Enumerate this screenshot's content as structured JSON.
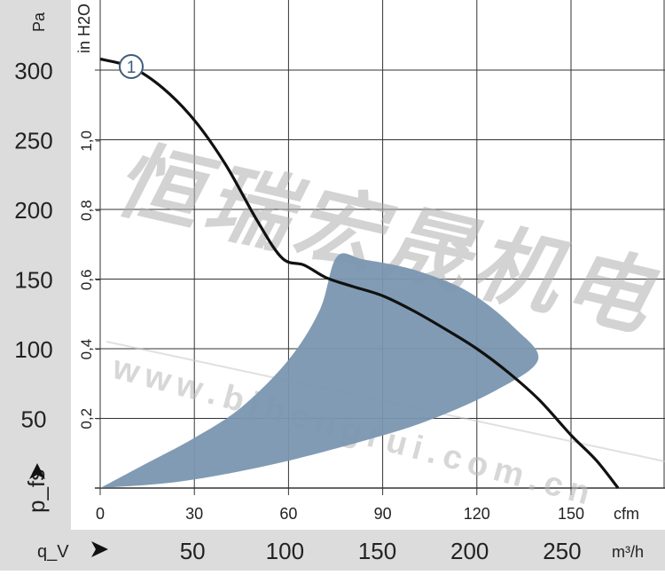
{
  "chart_data": {
    "type": "area",
    "title": "",
    "y_unit_left": "Pa",
    "y_unit_secondary": "in H2O",
    "y_label": "p_fs",
    "x_label": "q_V",
    "x_unit_top": "cfm",
    "x_unit_bottom": "m³/h",
    "xlim_cfm": [
      0,
      165
    ],
    "ylim_pa": [
      0,
      350
    ],
    "grid": true,
    "pa_ticks": [
      "300",
      "250",
      "200",
      "150",
      "100",
      "50"
    ],
    "pa_tick_values": [
      300,
      250,
      200,
      150,
      100,
      50
    ],
    "inh2o_ticks": [
      "1,0",
      "0,8",
      "0,6",
      "0,4",
      "0,2"
    ],
    "inh2o_tick_values": [
      1.0,
      0.8,
      0.6,
      0.4,
      0.2
    ],
    "cfm_ticks": [
      "0",
      "30",
      "60",
      "90",
      "120",
      "150"
    ],
    "cfm_tick_values": [
      0,
      30,
      60,
      90,
      120,
      150
    ],
    "m3h_ticks": [
      "50",
      "100",
      "150",
      "200",
      "250"
    ],
    "m3h_tick_values": [
      50,
      100,
      150,
      200,
      250
    ],
    "series": [
      {
        "name": "1",
        "color": "#111111",
        "x_cfm": [
          0,
          10,
          20,
          30,
          40,
          50,
          58,
          65,
          72,
          80,
          90,
          100,
          110,
          120,
          130,
          140,
          150,
          158,
          165
        ],
        "y_pa": [
          308,
          302,
          287,
          264,
          232,
          192,
          165,
          160,
          151,
          145,
          138,
          127,
          114,
          100,
          83,
          63,
          38,
          20,
          0
        ]
      }
    ],
    "operating_region": {
      "color": "#7a96b0",
      "x_cfm": [
        0,
        15,
        30,
        45,
        60,
        70,
        75.4,
        84,
        101,
        118,
        132,
        139.5,
        126,
        104,
        81,
        53,
        25,
        0
      ],
      "y_pa": [
        0,
        18,
        36,
        58,
        92,
        128,
        166,
        164,
        156,
        140,
        115,
        92,
        70,
        48,
        32,
        16,
        4.5,
        0
      ]
    }
  },
  "watermark": {
    "text_cn": "恒瑞宏晟机电",
    "text_url": "w w w . b j h e n g r u i . c o m . c n"
  }
}
